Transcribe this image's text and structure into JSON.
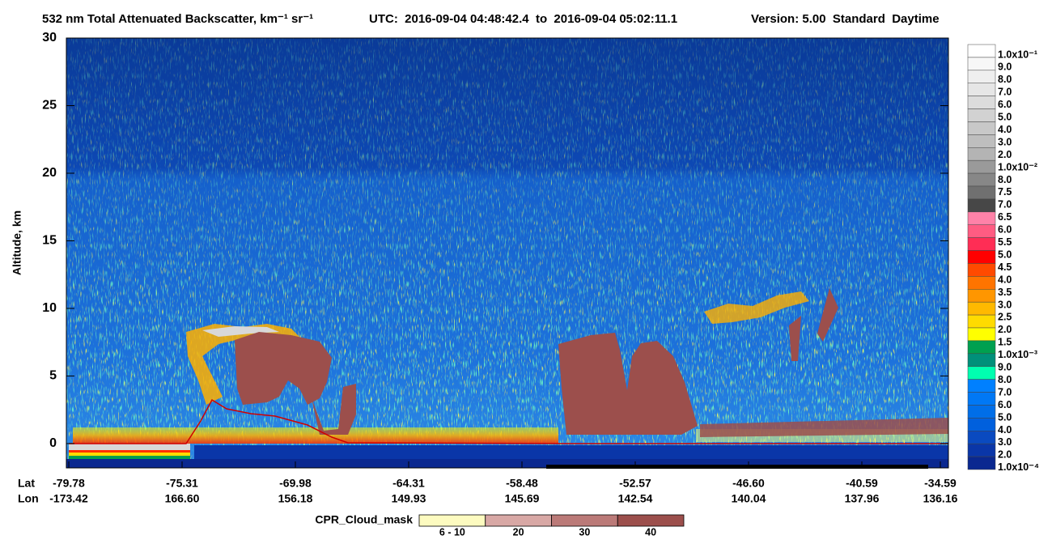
{
  "chart_data": {
    "type": "curtain",
    "title": "532 nm Total Attenuated Backscatter, km⁻¹ sr⁻¹",
    "subtitle": "UTC:  2016-09-04 04:48:42.4  to  2016-09-04 05:02:11.1",
    "version": "Version: 5.00  Standard  Daytime",
    "ylabel": "Altitude, km",
    "ylim": [
      -1.8,
      30
    ],
    "yticks": [
      0,
      5,
      10,
      15,
      20,
      25,
      30
    ],
    "x_row_labels": [
      "Lat",
      "Lon"
    ],
    "x_lat": [
      "-79.78",
      "-75.31",
      "-69.98",
      "-64.31",
      "-58.48",
      "-52.57",
      "-46.60",
      "-40.59",
      "-34.59"
    ],
    "x_lon": [
      "-173.42",
      "166.60",
      "156.18",
      "149.93",
      "145.69",
      "142.54",
      "140.04",
      "137.96",
      "136.16"
    ],
    "colorbar": {
      "labels": [
        "1.0x10⁻¹",
        "9.0",
        "8.0",
        "7.0",
        "6.0",
        "5.0",
        "4.0",
        "3.0",
        "2.0",
        "1.0x10⁻²",
        "8.0",
        "7.5",
        "7.0",
        "6.5",
        "6.0",
        "5.5",
        "5.0",
        "4.5",
        "4.0",
        "3.5",
        "3.0",
        "2.5",
        "2.0",
        "1.5",
        "1.0x10⁻³",
        "9.0",
        "8.0",
        "7.0",
        "6.0",
        "5.0",
        "4.0",
        "3.0",
        "2.0",
        "1.0x10⁻⁴"
      ],
      "colors": [
        "#ffffff",
        "#f7f7f7",
        "#efefef",
        "#e6e6e6",
        "#dcdcdc",
        "#d2d2d2",
        "#c8c8c8",
        "#bebebe",
        "#b4b4b4",
        "#9a9a9a",
        "#878787",
        "#707070",
        "#474747",
        "#ff82a8",
        "#ff5c82",
        "#ff2d55",
        "#ff0000",
        "#ff4a00",
        "#ff7400",
        "#ff9600",
        "#ffb900",
        "#ffdb00",
        "#ffff00",
        "#00a050",
        "#00907a",
        "#00ffb0",
        "#0080ff",
        "#0078f5",
        "#006ee8",
        "#0060dd",
        "#0a4ac0",
        "#0a36a8",
        "#0a2890"
      ]
    },
    "cpr_legend": {
      "title": "CPR_Cloud_mask",
      "labels": [
        "6 - 10",
        "20",
        "30",
        "40"
      ],
      "colors": [
        "#fdfbc0",
        "#d8a8a5",
        "#bb7a78",
        "#9c4f4c"
      ]
    }
  }
}
